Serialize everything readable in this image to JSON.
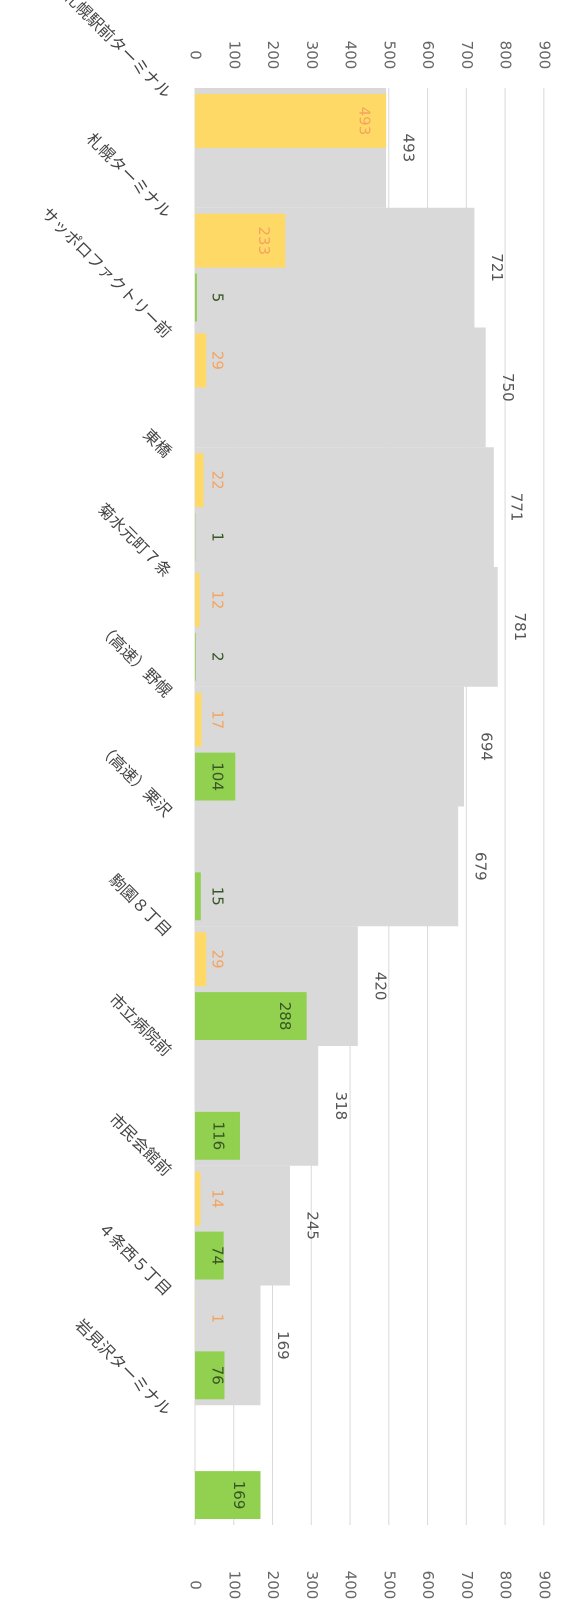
{
  "chart_data": {
    "type": "bar",
    "orientation": "rotated-90",
    "value_axis": {
      "min": 0,
      "max": 900,
      "step": 100,
      "ticks": [
        "0",
        "100",
        "200",
        "300",
        "400",
        "500",
        "600",
        "700",
        "800",
        "900"
      ]
    },
    "grid": true,
    "categories": [
      "札幌駅前ターミナル",
      "札幌ターミナル",
      "サッポロファクトリー前",
      "東橋",
      "菊水元町７条",
      "（高速）野幌",
      "（高速）栗沢",
      "駒園８丁目",
      "市立病院前",
      "市民会館前",
      "４条西５丁目",
      "岩見沢ターミナル"
    ],
    "series": [
      {
        "name": "",
        "role": "on-board",
        "color": "#d9d9d9",
        "label_color": "#555555",
        "values": [
          493,
          721,
          750,
          771,
          781,
          694,
          679,
          420,
          318,
          245,
          169,
          null
        ]
      },
      {
        "name": "",
        "role": "boarding",
        "color": "#ffd966",
        "label_color": "#f4a460",
        "values": [
          493,
          233,
          29,
          22,
          12,
          17,
          null,
          29,
          null,
          14,
          1,
          null
        ]
      },
      {
        "name": "",
        "role": "alighting",
        "color": "#92d050",
        "label_color": "#375623",
        "values": [
          null,
          5,
          null,
          1,
          2,
          104,
          15,
          288,
          116,
          74,
          76,
          169
        ]
      }
    ]
  }
}
